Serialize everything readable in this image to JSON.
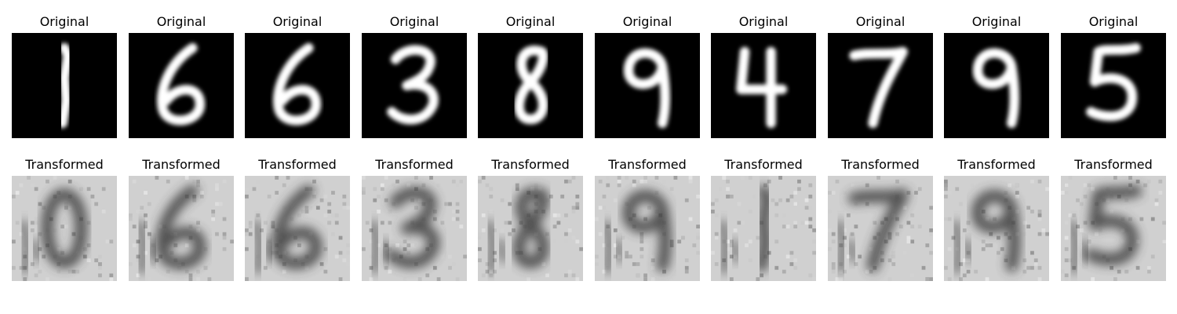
{
  "original_title": "Original",
  "transformed_title": "Transformed",
  "panels": [
    {
      "digit": "1",
      "guess": "0"
    },
    {
      "digit": "6",
      "guess": "6"
    },
    {
      "digit": "6",
      "guess": "6"
    },
    {
      "digit": "3",
      "guess": "3"
    },
    {
      "digit": "8",
      "guess": "8"
    },
    {
      "digit": "9",
      "guess": "9"
    },
    {
      "digit": "4",
      "guess": "1"
    },
    {
      "digit": "7",
      "guess": "7"
    },
    {
      "digit": "9",
      "guess": "9"
    },
    {
      "digit": "5",
      "guess": "5"
    }
  ]
}
